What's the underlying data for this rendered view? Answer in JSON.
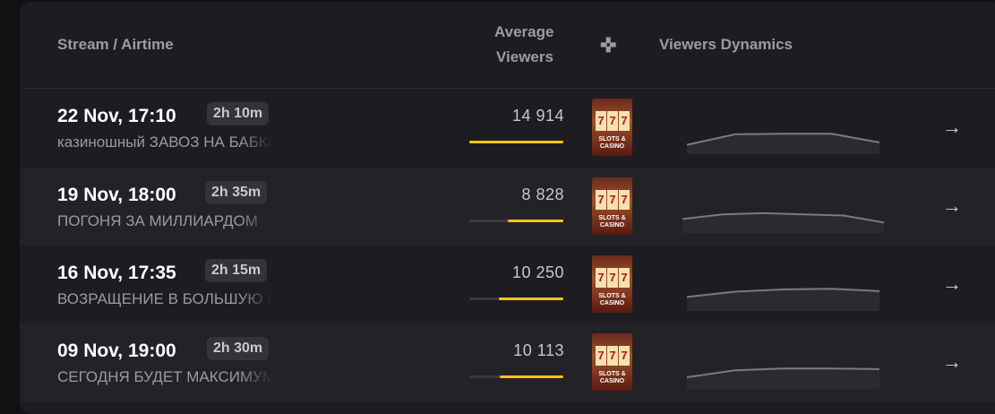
{
  "header": {
    "stream": "Stream / Airtime",
    "avg_viewers_1": "Average",
    "avg_viewers_2": "Viewers",
    "game_icon": "gamepad-icon",
    "dynamics": "Viewers Dynamics"
  },
  "colors": {
    "accent": "#f5c518",
    "bg": "#1d1d21"
  },
  "rows": [
    {
      "date": "22 Nov, 17:10",
      "duration": "2h 10m",
      "title": "казиношный ЗАВОЗ НА БАБКИ",
      "avg": "14 914",
      "bar": 1.0,
      "game": "SLOTS & CASINO",
      "dynamics": [
        8,
        17,
        17.5,
        17.5,
        10
      ]
    },
    {
      "date": "19 Nov, 18:00",
      "duration": "2h 35m",
      "title": "ПОГОНЯ ЗА МИЛЛИАРДОМ",
      "avg": "8 828",
      "bar": 0.59,
      "game": "SLOTS & CASINO",
      "dynamics": [
        12,
        16,
        17,
        16,
        15,
        9
      ]
    },
    {
      "date": "16 Nov, 17:35",
      "duration": "2h 15m",
      "title": "ВОЗРАЩЕНИЕ В БОЛЬШУЮ ИГРУ",
      "avg": "10 250",
      "bar": 0.69,
      "game": "SLOTS & CASINO",
      "dynamics": [
        12,
        16.5,
        18.5,
        19,
        17
      ]
    },
    {
      "date": "09 Nov, 19:00",
      "duration": "2h 30m",
      "title": "СЕГОДНЯ БУДЕТ МАКСИМУМ",
      "avg": "10 113",
      "bar": 0.68,
      "game": "SLOTS & CASINO",
      "dynamics": [
        10,
        16,
        17.5,
        17.5,
        17
      ]
    }
  ]
}
